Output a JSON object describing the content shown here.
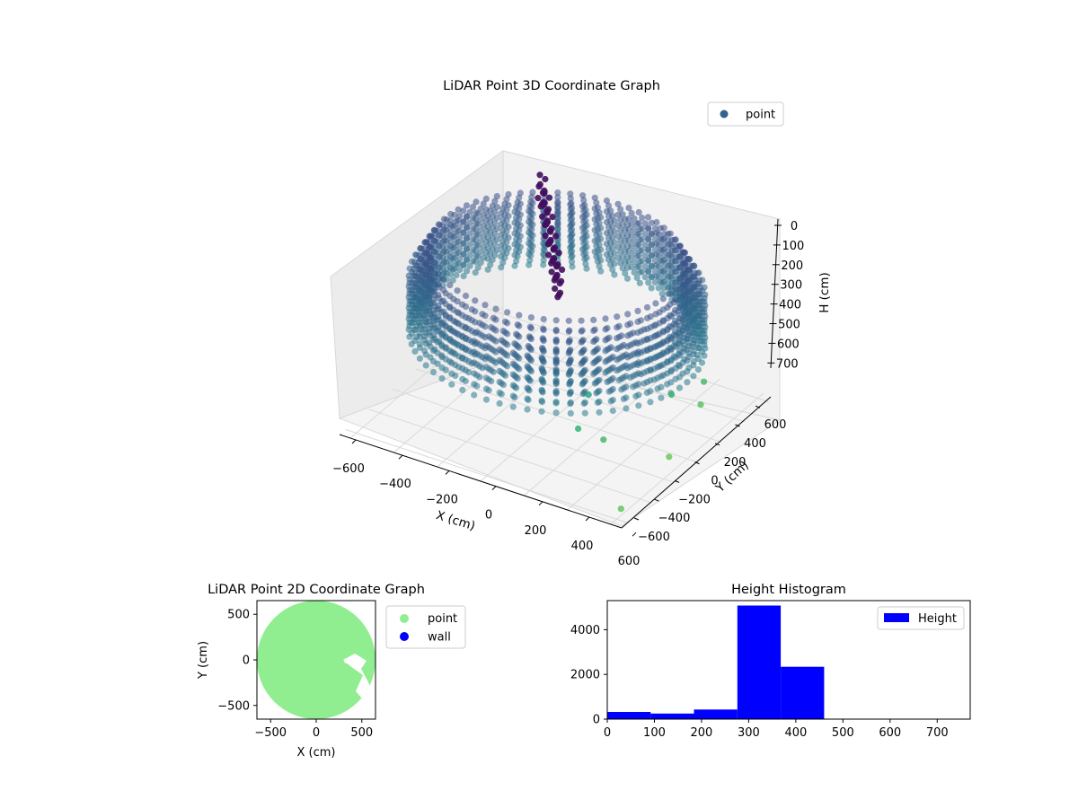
{
  "colors": {
    "point3d_legend": "#33638d",
    "point2d": "#90ee90",
    "wall": "#0000ff",
    "hist": "#0000ff"
  },
  "chart_data": [
    {
      "type": "scatter",
      "title": "LiDAR Point 3D Coordinate Graph",
      "xlabel": "X (cm)",
      "ylabel": "Y (cm)",
      "zlabel": "H (cm)",
      "x_ticks": [
        "−600",
        "−400",
        "−200",
        "0",
        "200",
        "400",
        "600"
      ],
      "y_ticks": [
        "−600",
        "−400",
        "−200",
        "0",
        "200",
        "400",
        "600"
      ],
      "z_ticks": [
        "0",
        "100",
        "200",
        "300",
        "400",
        "500",
        "600",
        "700"
      ],
      "legend": [
        "point"
      ],
      "legend_position": "top-right",
      "z_inverted": true,
      "colormap": "viridis",
      "series": [
        {
          "name": "point",
          "rings": [
            {
              "radius": 600,
              "h": 430
            },
            {
              "radius": 580,
              "h": 400
            },
            {
              "radius": 560,
              "h": 370
            },
            {
              "radius": 540,
              "h": 340
            },
            {
              "radius": 520,
              "h": 310
            }
          ],
          "cluster": [
            {
              "x": -280,
              "y": 380,
              "h": 120
            },
            {
              "x": -250,
              "y": 360,
              "h": 180
            },
            {
              "x": -230,
              "y": 350,
              "h": 250
            },
            {
              "x": -210,
              "y": 340,
              "h": 320
            },
            {
              "x": -190,
              "y": 330,
              "h": 380
            },
            {
              "x": -170,
              "y": 320,
              "h": 440
            }
          ],
          "scatter": [
            {
              "x": 200,
              "y": -100,
              "h": 560
            },
            {
              "x": 260,
              "y": -300,
              "h": 600
            },
            {
              "x": 350,
              "y": -250,
              "h": 640
            },
            {
              "x": 420,
              "y": 200,
              "h": 620
            },
            {
              "x": 500,
              "y": 300,
              "h": 680
            },
            {
              "x": 560,
              "y": -80,
              "h": 720
            },
            {
              "x": 620,
              "y": -600,
              "h": 700
            },
            {
              "x": 450,
              "y": 420,
              "h": 650
            }
          ]
        }
      ],
      "xlim": [
        -650,
        650
      ],
      "ylim": [
        -650,
        650
      ],
      "zlim": [
        0,
        750
      ]
    },
    {
      "type": "scatter",
      "title": "LiDAR Point 2D Coordinate Graph",
      "xlabel": "X (cm)",
      "ylabel": "Y (cm)",
      "x_ticks": [
        "−500",
        "0",
        "500"
      ],
      "y_ticks": [
        "500",
        "0",
        "−500"
      ],
      "legend": [
        "point",
        "wall"
      ],
      "legend_position": "outside-right",
      "xlim": [
        -650,
        650
      ],
      "ylim": [
        -650,
        650
      ],
      "series": [
        {
          "name": "point",
          "shape": "filled disc",
          "radius": 650
        },
        {
          "name": "wall",
          "values": []
        }
      ]
    },
    {
      "type": "bar",
      "title": "Height Histogram",
      "legend": [
        "Height"
      ],
      "legend_position": "top-right",
      "x_ticks": [
        "0",
        "100",
        "200",
        "300",
        "400",
        "500",
        "600",
        "700"
      ],
      "y_ticks": [
        "0",
        "2000",
        "4000"
      ],
      "xlim": [
        0,
        770
      ],
      "ylim": [
        0,
        5300
      ],
      "bins": [
        {
          "x0": 0,
          "x1": 92,
          "count": 320
        },
        {
          "x0": 92,
          "x1": 184,
          "count": 250
        },
        {
          "x0": 184,
          "x1": 276,
          "count": 430
        },
        {
          "x0": 276,
          "x1": 368,
          "count": 5080
        },
        {
          "x0": 368,
          "x1": 460,
          "count": 2340
        },
        {
          "x0": 460,
          "x1": 552,
          "count": 10
        },
        {
          "x0": 552,
          "x1": 644,
          "count": 5
        },
        {
          "x0": 644,
          "x1": 736,
          "count": 4
        }
      ]
    }
  ]
}
